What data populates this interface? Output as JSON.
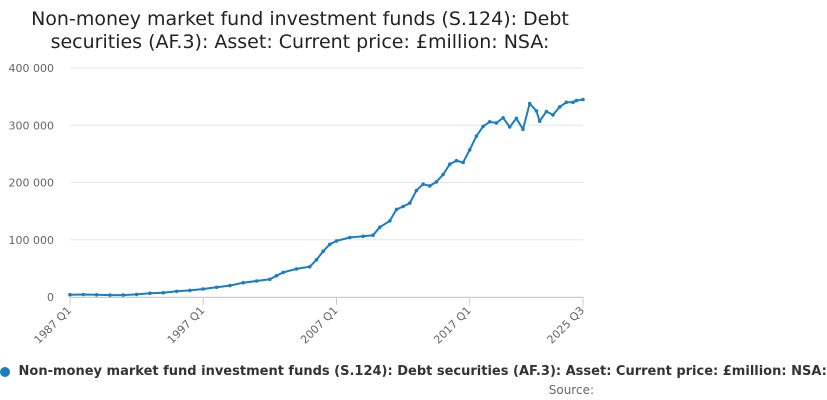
{
  "title_line1": "Non-money market fund investment funds (S.124): Debt",
  "title_line2": "securities (AF.3): Asset: Current price: £million: NSA:",
  "source_label": "Source:",
  "colors": {
    "line": "#1b7ec2",
    "grid": "#e6e6e6",
    "axis_text": "#666666"
  },
  "chart_data": {
    "type": "line",
    "title": "Non-money market fund investment funds (S.124): Debt securities (AF.3): Asset: Current price: £million: NSA:",
    "ylim": [
      0,
      400000
    ],
    "y_ticks": [
      {
        "value": 0,
        "label": "0"
      },
      {
        "value": 100000,
        "label": "100 000"
      },
      {
        "value": 200000,
        "label": "200 000"
      },
      {
        "value": 300000,
        "label": "300 000"
      },
      {
        "value": 400000,
        "label": "400 000"
      }
    ],
    "x_range": [
      "1987 Q1",
      "2025 Q3"
    ],
    "x_ticks": [
      "1987 Q1",
      "1997 Q1",
      "2007 Q1",
      "2017 Q1",
      "2025 Q3"
    ],
    "grid": true,
    "legend_position": "bottom",
    "series": [
      {
        "name": "Non-money market fund investment funds (S.124): Debt securities (AF.3): Asset: Current price: £million: NSA:",
        "color": "#1b7ec2",
        "points": [
          [
            "1987 Q1",
            4000
          ],
          [
            "1988 Q1",
            4300
          ],
          [
            "1989 Q1",
            3800
          ],
          [
            "1990 Q1",
            3300
          ],
          [
            "1991 Q1",
            3300
          ],
          [
            "1992 Q1",
            4500
          ],
          [
            "1993 Q1",
            6500
          ],
          [
            "1994 Q1",
            7500
          ],
          [
            "1995 Q1",
            10000
          ],
          [
            "1996 Q1",
            11500
          ],
          [
            "1997 Q1",
            14000
          ],
          [
            "1998 Q1",
            17000
          ],
          [
            "1999 Q1",
            20000
          ],
          [
            "2000 Q1",
            25000
          ],
          [
            "2001 Q1",
            28000
          ],
          [
            "2002 Q1",
            31000
          ],
          [
            "2002 Q3",
            37000
          ],
          [
            "2003 Q1",
            43000
          ],
          [
            "2004 Q1",
            49000
          ],
          [
            "2005 Q1",
            53000
          ],
          [
            "2005 Q3",
            65000
          ],
          [
            "2006 Q1",
            80000
          ],
          [
            "2006 Q3",
            92000
          ],
          [
            "2007 Q1",
            98000
          ],
          [
            "2008 Q1",
            104000
          ],
          [
            "2009 Q1",
            106000
          ],
          [
            "2009 Q4",
            108000
          ],
          [
            "2010 Q2",
            122000
          ],
          [
            "2011 Q1",
            133000
          ],
          [
            "2011 Q3",
            153000
          ],
          [
            "2012 Q1",
            158000
          ],
          [
            "2012 Q3",
            164000
          ],
          [
            "2013 Q1",
            186000
          ],
          [
            "2013 Q3",
            197000
          ],
          [
            "2014 Q1",
            194000
          ],
          [
            "2014 Q3",
            201000
          ],
          [
            "2015 Q1",
            214000
          ],
          [
            "2015 Q3",
            232000
          ],
          [
            "2016 Q1",
            238000
          ],
          [
            "2016 Q3",
            235000
          ],
          [
            "2017 Q1",
            257000
          ],
          [
            "2017 Q3",
            281000
          ],
          [
            "2018 Q1",
            298000
          ],
          [
            "2018 Q3",
            306000
          ],
          [
            "2019 Q1",
            304000
          ],
          [
            "2019 Q3",
            313000
          ],
          [
            "2020 Q1",
            297000
          ],
          [
            "2020 Q3",
            312000
          ],
          [
            "2021 Q1",
            293000
          ],
          [
            "2021 Q3",
            338000
          ],
          [
            "2022 Q1",
            325000
          ],
          [
            "2022 Q2",
            307000
          ],
          [
            "2022 Q4",
            324000
          ],
          [
            "2023 Q2",
            318000
          ],
          [
            "2023 Q4",
            332000
          ],
          [
            "2024 Q2",
            340000
          ],
          [
            "2024 Q4",
            340000
          ],
          [
            "2025 Q1",
            343000
          ],
          [
            "2025 Q3",
            345000
          ]
        ]
      }
    ]
  }
}
